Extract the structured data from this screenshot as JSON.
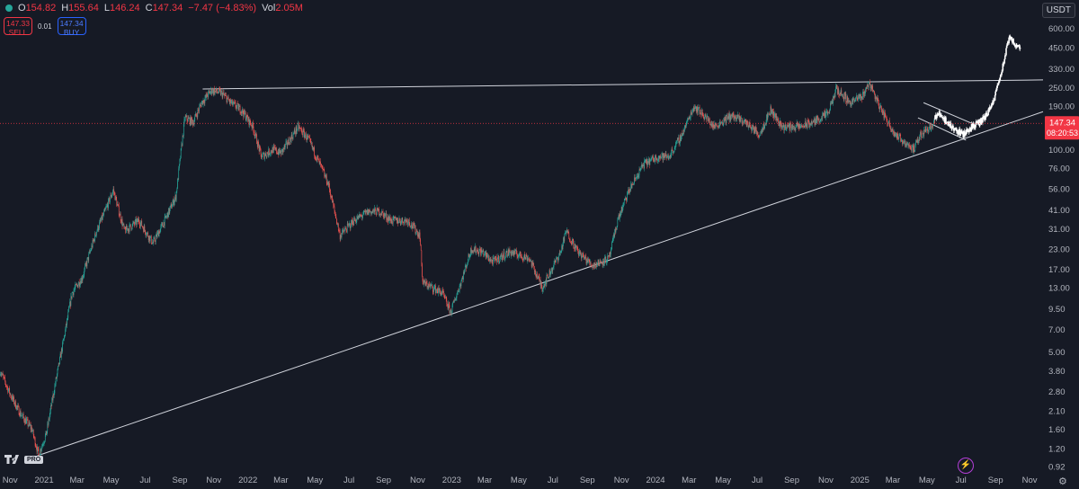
{
  "legend": {
    "open_label": "O",
    "open": "154.82",
    "high_label": "H",
    "high": "155.64",
    "low_label": "L",
    "low": "146.24",
    "close_label": "C",
    "close": "147.34",
    "change": "−7.47 (−4.83%)",
    "vol_label": "Vol",
    "vol": "2.05M"
  },
  "trade": {
    "sell_price": "147.33",
    "sell_label": "SELL",
    "spread": "0.01",
    "buy_price": "147.34",
    "buy_label": "BUY"
  },
  "currency": "USDT",
  "logo_badge": "PRO",
  "colors": {
    "up": "#26a69a",
    "down": "#ef5350",
    "background": "#161a25",
    "trendline": "#d1d4dc",
    "price_line": "#f23645",
    "projection": "#ffffff"
  },
  "chart_data": {
    "type": "candlestick",
    "y_scale": "log",
    "ylim": [
      0.85,
      700
    ],
    "y_ticks": [
      600,
      450,
      330,
      250,
      190,
      140,
      100,
      76,
      56,
      41,
      31,
      23,
      17,
      13,
      9.5,
      7,
      5,
      3.8,
      2.8,
      2.1,
      1.6,
      1.2,
      0.92
    ],
    "y_tick_labels": [
      "600.00",
      "450.00",
      "330.00",
      "250.00",
      "190.00",
      "140.00",
      "100.00",
      "76.00",
      "56.00",
      "41.00",
      "31.00",
      "23.00",
      "17.00",
      "13.00",
      "9.50",
      "7.00",
      "5.00",
      "3.80",
      "2.80",
      "2.10",
      "1.60",
      "1.20",
      "0.92"
    ],
    "x_range": [
      "2020-10-14",
      "2025-11-25"
    ],
    "x_ticks": [
      "Nov",
      "2021",
      "Mar",
      "May",
      "Jul",
      "Sep",
      "Nov",
      "2022",
      "Mar",
      "May",
      "Jul",
      "Sep",
      "Nov",
      "2023",
      "Mar",
      "May",
      "Jul",
      "Sep",
      "Nov",
      "2024",
      "Mar",
      "May",
      "Jul",
      "Sep",
      "Nov",
      "2025",
      "Mar",
      "May",
      "Jul",
      "Sep",
      "Nov"
    ],
    "x_tick_dates": [
      "2020-11-01",
      "2021-01-01",
      "2021-03-01",
      "2021-05-01",
      "2021-07-01",
      "2021-09-01",
      "2021-11-01",
      "2022-01-01",
      "2022-03-01",
      "2022-05-01",
      "2022-07-01",
      "2022-09-01",
      "2022-11-01",
      "2023-01-01",
      "2023-03-01",
      "2023-05-01",
      "2023-07-01",
      "2023-09-01",
      "2023-11-01",
      "2024-01-01",
      "2024-03-01",
      "2024-05-01",
      "2024-07-01",
      "2024-09-01",
      "2024-11-01",
      "2025-01-01",
      "2025-03-01",
      "2025-05-01",
      "2025-07-01",
      "2025-09-01",
      "2025-11-01"
    ],
    "last_price": 147.34,
    "last_price_label": "147.34",
    "countdown": "08:20:53",
    "price_path": [
      [
        "2020-10-14",
        3.8
      ],
      [
        "2020-11-03",
        2.6
      ],
      [
        "2020-11-20",
        2.0
      ],
      [
        "2020-12-10",
        1.6
      ],
      [
        "2020-12-22",
        1.1
      ],
      [
        "2021-01-05",
        1.5
      ],
      [
        "2021-01-20",
        3.0
      ],
      [
        "2021-02-05",
        6.0
      ],
      [
        "2021-02-20",
        12
      ],
      [
        "2021-03-10",
        15
      ],
      [
        "2021-04-05",
        30
      ],
      [
        "2021-04-20",
        40
      ],
      [
        "2021-05-05",
        55
      ],
      [
        "2021-05-15",
        40
      ],
      [
        "2021-05-25",
        30
      ],
      [
        "2021-06-20",
        35
      ],
      [
        "2021-07-15",
        25
      ],
      [
        "2021-08-05",
        35
      ],
      [
        "2021-08-25",
        50
      ],
      [
        "2021-09-10",
        160
      ],
      [
        "2021-09-25",
        150
      ],
      [
        "2021-10-10",
        200
      ],
      [
        "2021-10-28",
        240
      ],
      [
        "2021-11-15",
        230
      ],
      [
        "2021-12-01",
        200
      ],
      [
        "2021-12-20",
        180
      ],
      [
        "2022-01-10",
        140
      ],
      [
        "2022-01-25",
        90
      ],
      [
        "2022-02-15",
        100
      ],
      [
        "2022-03-01",
        95
      ],
      [
        "2022-03-20",
        120
      ],
      [
        "2022-04-01",
        140
      ],
      [
        "2022-04-20",
        115
      ],
      [
        "2022-05-10",
        80
      ],
      [
        "2022-05-25",
        60
      ],
      [
        "2022-06-15",
        28
      ],
      [
        "2022-07-10",
        35
      ],
      [
        "2022-08-05",
        40
      ],
      [
        "2022-08-25",
        40
      ],
      [
        "2022-09-15",
        35
      ],
      [
        "2022-10-15",
        35
      ],
      [
        "2022-11-05",
        28
      ],
      [
        "2022-11-10",
        14
      ],
      [
        "2022-12-15",
        12
      ],
      [
        "2022-12-30",
        9
      ],
      [
        "2023-01-20",
        15
      ],
      [
        "2023-02-05",
        23
      ],
      [
        "2023-02-25",
        22
      ],
      [
        "2023-03-15",
        19
      ],
      [
        "2023-04-15",
        22
      ],
      [
        "2023-05-20",
        20
      ],
      [
        "2023-06-12",
        13
      ],
      [
        "2023-07-15",
        22
      ],
      [
        "2023-07-25",
        30
      ],
      [
        "2023-08-15",
        22
      ],
      [
        "2023-09-10",
        18
      ],
      [
        "2023-10-10",
        20
      ],
      [
        "2023-10-25",
        35
      ],
      [
        "2023-11-15",
        55
      ],
      [
        "2023-12-10",
        80
      ],
      [
        "2024-01-05",
        90
      ],
      [
        "2024-01-25",
        90
      ],
      [
        "2024-02-15",
        120
      ],
      [
        "2024-03-10",
        190
      ],
      [
        "2024-03-25",
        170
      ],
      [
        "2024-04-15",
        140
      ],
      [
        "2024-05-15",
        165
      ],
      [
        "2024-06-10",
        150
      ],
      [
        "2024-07-05",
        125
      ],
      [
        "2024-07-25",
        180
      ],
      [
        "2024-08-15",
        140
      ],
      [
        "2024-09-15",
        140
      ],
      [
        "2024-10-10",
        150
      ],
      [
        "2024-11-05",
        170
      ],
      [
        "2024-11-20",
        245
      ],
      [
        "2024-12-15",
        200
      ],
      [
        "2025-01-05",
        220
      ],
      [
        "2025-01-18",
        270
      ],
      [
        "2025-02-05",
        190
      ],
      [
        "2025-02-25",
        140
      ],
      [
        "2025-03-10",
        120
      ],
      [
        "2025-03-25",
        110
      ],
      [
        "2025-04-08",
        100
      ],
      [
        "2025-04-20",
        125
      ],
      [
        "2025-05-05",
        140
      ],
      [
        "2025-05-15",
        147
      ]
    ],
    "projection_path": [
      [
        "2025-05-15",
        160
      ],
      [
        "2025-05-25",
        170
      ],
      [
        "2025-06-05",
        150
      ],
      [
        "2025-06-20",
        135
      ],
      [
        "2025-07-05",
        125
      ],
      [
        "2025-07-20",
        140
      ],
      [
        "2025-08-05",
        150
      ],
      [
        "2025-08-15",
        165
      ],
      [
        "2025-08-28",
        200
      ],
      [
        "2025-09-08",
        290
      ],
      [
        "2025-09-15",
        350
      ],
      [
        "2025-09-25",
        520
      ],
      [
        "2025-10-05",
        480
      ],
      [
        "2025-10-15",
        450
      ]
    ],
    "trendlines": [
      {
        "name": "resistance",
        "from": [
          "2021-10-12",
          245
        ],
        "to": [
          "2025-11-25",
          280
        ]
      },
      {
        "name": "support",
        "from": [
          "2020-12-20",
          1.08
        ],
        "to": [
          "2025-11-25",
          175
        ]
      },
      {
        "name": "channel-upper",
        "from": [
          "2025-04-25",
          200
        ],
        "to": [
          "2025-07-25",
          145
        ]
      },
      {
        "name": "channel-lower",
        "from": [
          "2025-04-15",
          160
        ],
        "to": [
          "2025-07-10",
          115
        ]
      }
    ],
    "grid": false
  }
}
